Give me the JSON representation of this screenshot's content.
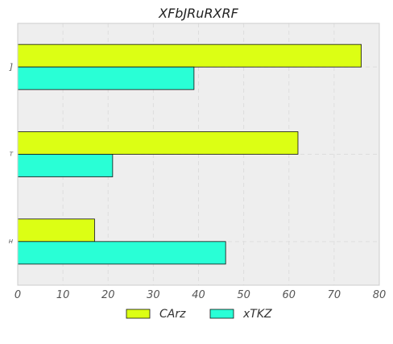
{
  "chart_data": {
    "type": "bar",
    "orientation": "horizontal",
    "title": "XFbJRuRXRF",
    "xlabel": "",
    "ylabel": "",
    "categories": [
      "H",
      "T",
      "]"
    ],
    "series": [
      {
        "name": "CArz",
        "values": [
          17,
          62,
          76
        ],
        "color": "#dcff14"
      },
      {
        "name": "xTKZ",
        "values": [
          46,
          21,
          39
        ],
        "color": "#29ffd6"
      }
    ],
    "xlim": [
      0,
      80
    ],
    "xticks": [
      0,
      10,
      20,
      30,
      40,
      50,
      60,
      70,
      80
    ],
    "grid": true,
    "legend_position": "bottom-center",
    "background_color": "#eeeeee"
  }
}
